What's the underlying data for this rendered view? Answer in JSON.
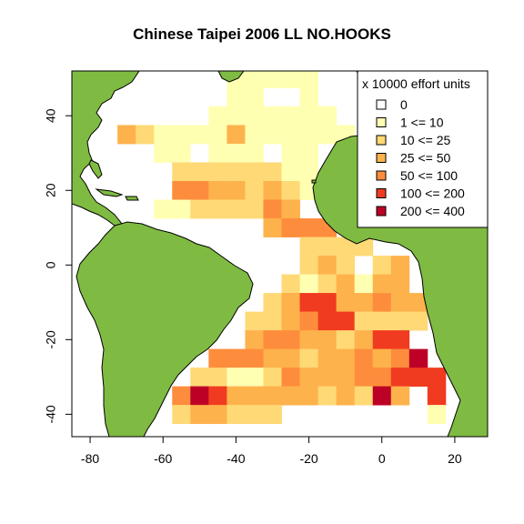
{
  "title": "Chinese Taipei 2006 LL NO.HOOKS",
  "map": {
    "xlim": [
      -85,
      29
    ],
    "ylim": [
      -46,
      52
    ],
    "x_ticks": [
      -80,
      -60,
      -40,
      -20,
      0,
      20
    ],
    "y_ticks": [
      -40,
      -20,
      0,
      20,
      40
    ],
    "land_color": "#7fbb42",
    "cell_size_deg": 5
  },
  "legend": {
    "title": "x 10000 effort units",
    "placement": "top-right",
    "classes": [
      {
        "label": "0",
        "color": "#ffffff"
      },
      {
        "label": "1 <= 10",
        "color": "#ffffb2"
      },
      {
        "label": "10 <= 25",
        "color": "#fed976"
      },
      {
        "label": "25 <= 50",
        "color": "#feb24c"
      },
      {
        "label": "50 <= 100",
        "color": "#fd8d3c"
      },
      {
        "label": "100 <= 200",
        "color": "#f03b20"
      },
      {
        "label": "200 <= 400",
        "color": "#bd0026"
      }
    ]
  },
  "chart_data": {
    "type": "heatmap",
    "title": "Chinese Taipei 2006 LL NO.HOOKS",
    "xlim": [
      -85,
      29
    ],
    "ylim": [
      -46,
      52
    ],
    "cell_size": 5,
    "cells": [
      {
        "lon": -40,
        "lat": 50,
        "c": 1
      },
      {
        "lon": -35,
        "lat": 50,
        "c": 1
      },
      {
        "lon": -30,
        "lat": 50,
        "c": 1
      },
      {
        "lon": -25,
        "lat": 50,
        "c": 1
      },
      {
        "lon": -20,
        "lat": 50,
        "c": 1
      },
      {
        "lon": -40,
        "lat": 45,
        "c": 1
      },
      {
        "lon": -35,
        "lat": 45,
        "c": 1
      },
      {
        "lon": -20,
        "lat": 45,
        "c": 1
      },
      {
        "lon": -45,
        "lat": 40,
        "c": 1
      },
      {
        "lon": -40,
        "lat": 40,
        "c": 1
      },
      {
        "lon": -35,
        "lat": 40,
        "c": 1
      },
      {
        "lon": -30,
        "lat": 40,
        "c": 1
      },
      {
        "lon": -25,
        "lat": 40,
        "c": 1
      },
      {
        "lon": -20,
        "lat": 40,
        "c": 1
      },
      {
        "lon": -15,
        "lat": 40,
        "c": 1
      },
      {
        "lon": -70,
        "lat": 35,
        "c": 3
      },
      {
        "lon": -65,
        "lat": 35,
        "c": 2
      },
      {
        "lon": -60,
        "lat": 35,
        "c": 1
      },
      {
        "lon": -55,
        "lat": 35,
        "c": 1
      },
      {
        "lon": -50,
        "lat": 35,
        "c": 1
      },
      {
        "lon": -45,
        "lat": 35,
        "c": 1
      },
      {
        "lon": -40,
        "lat": 35,
        "c": 3
      },
      {
        "lon": -35,
        "lat": 35,
        "c": 1
      },
      {
        "lon": -30,
        "lat": 35,
        "c": 1
      },
      {
        "lon": -25,
        "lat": 35,
        "c": 1
      },
      {
        "lon": -20,
        "lat": 35,
        "c": 1
      },
      {
        "lon": -15,
        "lat": 35,
        "c": 1
      },
      {
        "lon": -10,
        "lat": 35,
        "c": 1
      },
      {
        "lon": -60,
        "lat": 30,
        "c": 1
      },
      {
        "lon": -55,
        "lat": 30,
        "c": 1
      },
      {
        "lon": -45,
        "lat": 30,
        "c": 1
      },
      {
        "lon": -40,
        "lat": 30,
        "c": 1
      },
      {
        "lon": -35,
        "lat": 30,
        "c": 1
      },
      {
        "lon": -25,
        "lat": 30,
        "c": 1
      },
      {
        "lon": -20,
        "lat": 30,
        "c": 1
      },
      {
        "lon": -55,
        "lat": 25,
        "c": 2
      },
      {
        "lon": -50,
        "lat": 25,
        "c": 2
      },
      {
        "lon": -45,
        "lat": 25,
        "c": 2
      },
      {
        "lon": -40,
        "lat": 25,
        "c": 2
      },
      {
        "lon": -35,
        "lat": 25,
        "c": 2
      },
      {
        "lon": -30,
        "lat": 25,
        "c": 2
      },
      {
        "lon": -25,
        "lat": 25,
        "c": 1
      },
      {
        "lon": -20,
        "lat": 25,
        "c": 1
      },
      {
        "lon": -55,
        "lat": 20,
        "c": 4
      },
      {
        "lon": -50,
        "lat": 20,
        "c": 4
      },
      {
        "lon": -45,
        "lat": 20,
        "c": 3
      },
      {
        "lon": -40,
        "lat": 20,
        "c": 3
      },
      {
        "lon": -35,
        "lat": 20,
        "c": 2
      },
      {
        "lon": -30,
        "lat": 20,
        "c": 3
      },
      {
        "lon": -25,
        "lat": 20,
        "c": 2
      },
      {
        "lon": -20,
        "lat": 20,
        "c": 1
      },
      {
        "lon": -60,
        "lat": 15,
        "c": 1
      },
      {
        "lon": -55,
        "lat": 15,
        "c": 1
      },
      {
        "lon": -50,
        "lat": 15,
        "c": 2
      },
      {
        "lon": -45,
        "lat": 15,
        "c": 2
      },
      {
        "lon": -40,
        "lat": 15,
        "c": 2
      },
      {
        "lon": -35,
        "lat": 15,
        "c": 2
      },
      {
        "lon": -30,
        "lat": 15,
        "c": 4
      },
      {
        "lon": -25,
        "lat": 15,
        "c": 3
      },
      {
        "lon": -30,
        "lat": 10,
        "c": 3
      },
      {
        "lon": -25,
        "lat": 10,
        "c": 4
      },
      {
        "lon": -20,
        "lat": 10,
        "c": 4
      },
      {
        "lon": -15,
        "lat": 10,
        "c": 4
      },
      {
        "lon": -20,
        "lat": 5,
        "c": 2
      },
      {
        "lon": -15,
        "lat": 5,
        "c": 2
      },
      {
        "lon": -10,
        "lat": 5,
        "c": 2
      },
      {
        "lon": -5,
        "lat": 5,
        "c": 2
      },
      {
        "lon": -20,
        "lat": 0,
        "c": 2
      },
      {
        "lon": -15,
        "lat": 0,
        "c": 3
      },
      {
        "lon": -10,
        "lat": 0,
        "c": 2
      },
      {
        "lon": 0,
        "lat": 0,
        "c": 2
      },
      {
        "lon": 5,
        "lat": 0,
        "c": 3
      },
      {
        "lon": -25,
        "lat": -5,
        "c": 2
      },
      {
        "lon": -20,
        "lat": -5,
        "c": 1
      },
      {
        "lon": -15,
        "lat": -5,
        "c": 2
      },
      {
        "lon": -10,
        "lat": -5,
        "c": 3
      },
      {
        "lon": -5,
        "lat": -5,
        "c": 1
      },
      {
        "lon": 0,
        "lat": -5,
        "c": 3
      },
      {
        "lon": 5,
        "lat": -5,
        "c": 3
      },
      {
        "lon": -30,
        "lat": -10,
        "c": 2
      },
      {
        "lon": -25,
        "lat": -10,
        "c": 3
      },
      {
        "lon": -20,
        "lat": -10,
        "c": 5
      },
      {
        "lon": -15,
        "lat": -10,
        "c": 5
      },
      {
        "lon": -10,
        "lat": -10,
        "c": 3
      },
      {
        "lon": -5,
        "lat": -10,
        "c": 3
      },
      {
        "lon": 0,
        "lat": -10,
        "c": 4
      },
      {
        "lon": 5,
        "lat": -10,
        "c": 3
      },
      {
        "lon": 10,
        "lat": -10,
        "c": 3
      },
      {
        "lon": -35,
        "lat": -15,
        "c": 2
      },
      {
        "lon": -30,
        "lat": -15,
        "c": 2
      },
      {
        "lon": -25,
        "lat": -15,
        "c": 3
      },
      {
        "lon": -20,
        "lat": -15,
        "c": 4
      },
      {
        "lon": -15,
        "lat": -15,
        "c": 5
      },
      {
        "lon": -10,
        "lat": -15,
        "c": 5
      },
      {
        "lon": -5,
        "lat": -15,
        "c": 2
      },
      {
        "lon": 0,
        "lat": -15,
        "c": 2
      },
      {
        "lon": 5,
        "lat": -15,
        "c": 2
      },
      {
        "lon": 10,
        "lat": -15,
        "c": 2
      },
      {
        "lon": -35,
        "lat": -20,
        "c": 3
      },
      {
        "lon": -30,
        "lat": -20,
        "c": 4
      },
      {
        "lon": -25,
        "lat": -20,
        "c": 4
      },
      {
        "lon": -20,
        "lat": -20,
        "c": 3
      },
      {
        "lon": -15,
        "lat": -20,
        "c": 3
      },
      {
        "lon": -10,
        "lat": -20,
        "c": 2
      },
      {
        "lon": -5,
        "lat": -20,
        "c": 3
      },
      {
        "lon": 0,
        "lat": -20,
        "c": 5
      },
      {
        "lon": 5,
        "lat": -20,
        "c": 5
      },
      {
        "lon": -45,
        "lat": -25,
        "c": 4
      },
      {
        "lon": -40,
        "lat": -25,
        "c": 4
      },
      {
        "lon": -35,
        "lat": -25,
        "c": 4
      },
      {
        "lon": -30,
        "lat": -25,
        "c": 3
      },
      {
        "lon": -25,
        "lat": -25,
        "c": 3
      },
      {
        "lon": -20,
        "lat": -25,
        "c": 2
      },
      {
        "lon": -15,
        "lat": -25,
        "c": 3
      },
      {
        "lon": -10,
        "lat": -25,
        "c": 3
      },
      {
        "lon": -5,
        "lat": -25,
        "c": 4
      },
      {
        "lon": 0,
        "lat": -25,
        "c": 3
      },
      {
        "lon": 5,
        "lat": -25,
        "c": 4
      },
      {
        "lon": 10,
        "lat": -25,
        "c": 6
      },
      {
        "lon": -50,
        "lat": -30,
        "c": 2
      },
      {
        "lon": -45,
        "lat": -30,
        "c": 2
      },
      {
        "lon": -40,
        "lat": -30,
        "c": 1
      },
      {
        "lon": -35,
        "lat": -30,
        "c": 1
      },
      {
        "lon": -30,
        "lat": -30,
        "c": 2
      },
      {
        "lon": -25,
        "lat": -30,
        "c": 4
      },
      {
        "lon": -20,
        "lat": -30,
        "c": 3
      },
      {
        "lon": -15,
        "lat": -30,
        "c": 3
      },
      {
        "lon": -10,
        "lat": -30,
        "c": 3
      },
      {
        "lon": -5,
        "lat": -30,
        "c": 4
      },
      {
        "lon": 0,
        "lat": -30,
        "c": 4
      },
      {
        "lon": 5,
        "lat": -30,
        "c": 5
      },
      {
        "lon": 10,
        "lat": -30,
        "c": 5
      },
      {
        "lon": 15,
        "lat": -30,
        "c": 5
      },
      {
        "lon": -55,
        "lat": -35,
        "c": 4
      },
      {
        "lon": -50,
        "lat": -35,
        "c": 6
      },
      {
        "lon": -45,
        "lat": -35,
        "c": 5
      },
      {
        "lon": -40,
        "lat": -35,
        "c": 3
      },
      {
        "lon": -35,
        "lat": -35,
        "c": 3
      },
      {
        "lon": -30,
        "lat": -35,
        "c": 3
      },
      {
        "lon": -25,
        "lat": -35,
        "c": 3
      },
      {
        "lon": -20,
        "lat": -35,
        "c": 3
      },
      {
        "lon": -15,
        "lat": -35,
        "c": 2
      },
      {
        "lon": -10,
        "lat": -35,
        "c": 3
      },
      {
        "lon": -5,
        "lat": -35,
        "c": 2
      },
      {
        "lon": 0,
        "lat": -35,
        "c": 6
      },
      {
        "lon": 5,
        "lat": -35,
        "c": 3
      },
      {
        "lon": 15,
        "lat": -35,
        "c": 5
      },
      {
        "lon": -55,
        "lat": -40,
        "c": 2
      },
      {
        "lon": -50,
        "lat": -40,
        "c": 3
      },
      {
        "lon": -45,
        "lat": -40,
        "c": 3
      },
      {
        "lon": -40,
        "lat": -40,
        "c": 2
      },
      {
        "lon": -35,
        "lat": -40,
        "c": 2
      },
      {
        "lon": -30,
        "lat": -40,
        "c": 2
      },
      {
        "lon": 15,
        "lat": -40,
        "c": 1
      }
    ]
  }
}
